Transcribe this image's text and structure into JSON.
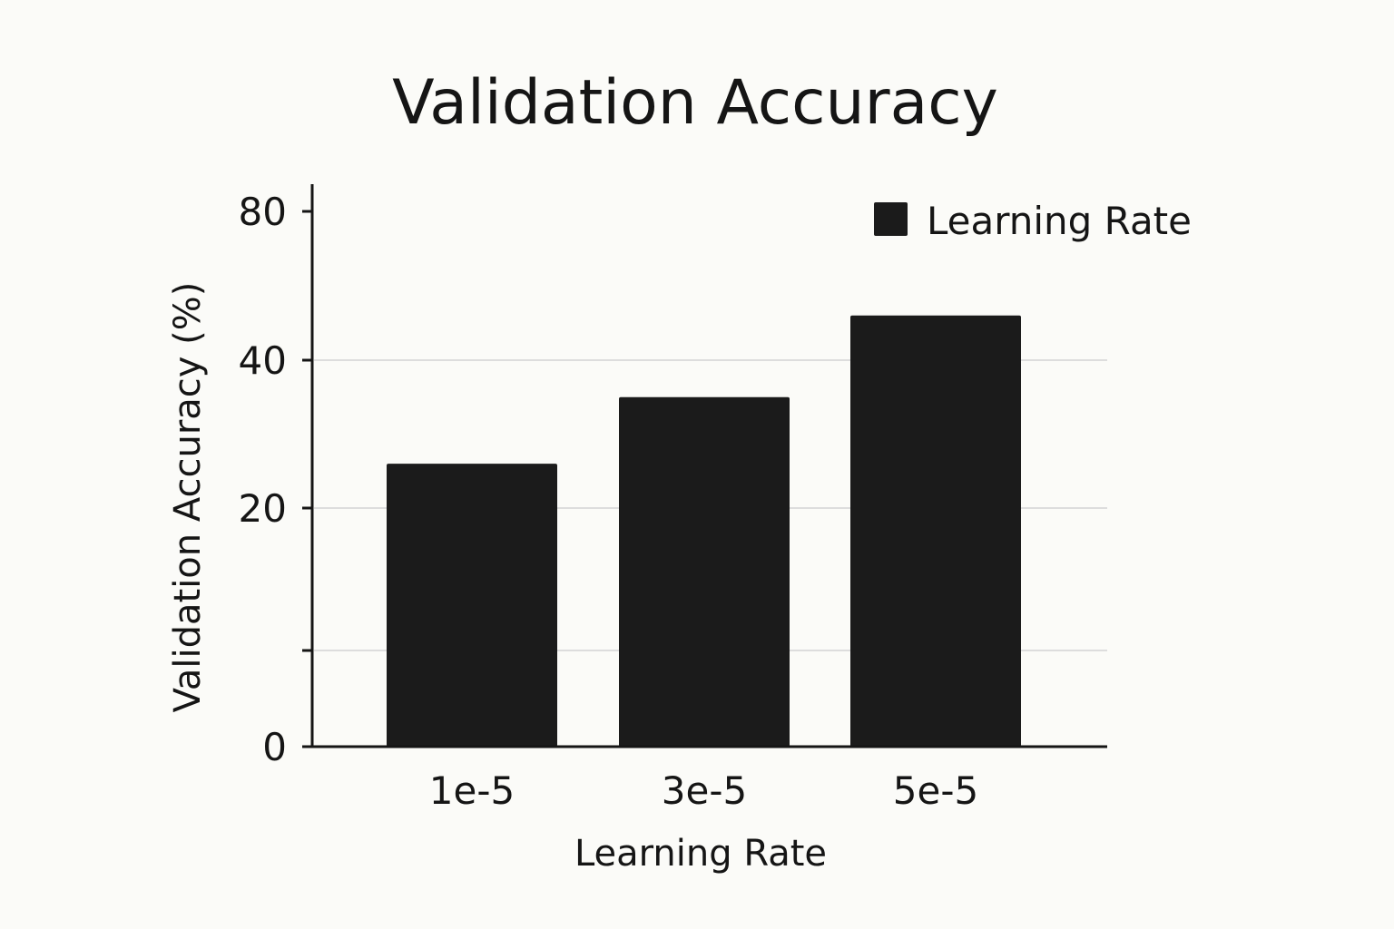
{
  "colors": {
    "background": "#fbfbf8",
    "bar": "#1b1b1b",
    "axis": "#151515",
    "grid": "#dddddd",
    "text": "#151515"
  },
  "chart_data": {
    "type": "bar",
    "title": "Validation Accuracy",
    "xlabel": "Learning Rate",
    "ylabel": "Validation Accuracy (%)",
    "categories": [
      "1e-5",
      "3e-5",
      "5e-5"
    ],
    "series": [
      {
        "name": "Learning Rate",
        "values": [
          26,
          35,
          52
        ]
      }
    ],
    "y_tick_labels": [
      {
        "value": 0,
        "label": "0"
      },
      {
        "value": 20,
        "label": "20"
      },
      {
        "value": 40,
        "label": "40"
      },
      {
        "value": 80,
        "label": "80"
      }
    ],
    "y_ticks_unlabeled": [
      6
    ],
    "gridlines_at": [
      6,
      20,
      40
    ],
    "grid": "horizontal",
    "legend_position": "top-right",
    "note": "y-axis tick spacing is non-uniform as drawn"
  }
}
